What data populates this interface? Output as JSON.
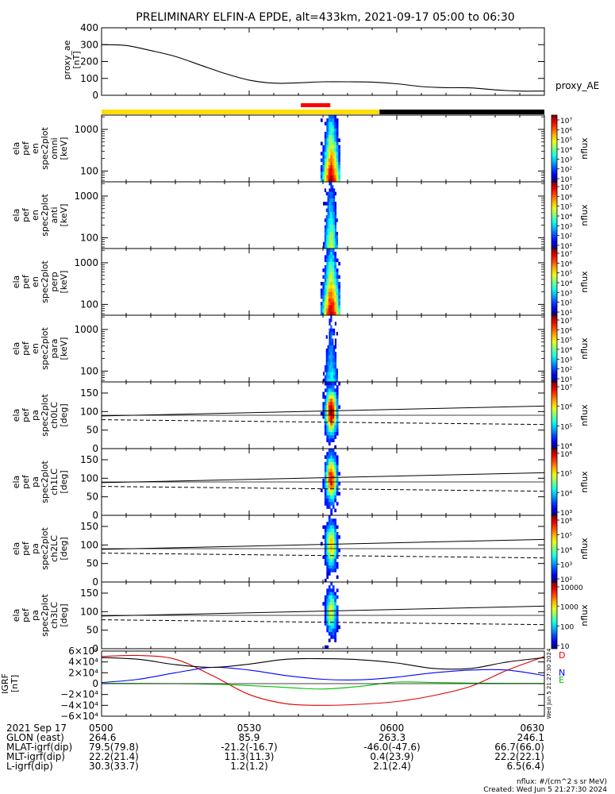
{
  "title": "PRELIMINARY ELFIN-A EPDE, alt=433km, 2021-09-17 05:00 to 06:30",
  "chart_data": [
    {
      "id": "proxy_ae",
      "type": "line",
      "ylabel": [
        "proxy_ae",
        "[nT]"
      ],
      "legend": "proxy_AE",
      "ylim": [
        0,
        400
      ],
      "yticks": [
        0,
        100,
        200,
        300,
        400
      ],
      "x_minutes": [
        0,
        5,
        10,
        15,
        20,
        25,
        30,
        35,
        40,
        45,
        50,
        55,
        60,
        65,
        70,
        75,
        80,
        85,
        90
      ],
      "values": [
        300,
        295,
        265,
        230,
        180,
        130,
        90,
        72,
        74,
        80,
        80,
        78,
        68,
        52,
        45,
        44,
        32,
        25,
        25
      ]
    },
    {
      "id": "spec_omni",
      "type": "heatmap",
      "ylabel": [
        "ela",
        "pef",
        "en",
        "spec2plot",
        "omni",
        "[keV]"
      ],
      "yticks": [
        "100",
        "1000"
      ],
      "ytick_values": [
        100,
        1000
      ],
      "ylim": [
        55,
        2200
      ],
      "ylog": true,
      "colorbar": {
        "label": "nflux",
        "ticks": [
          "10⁷",
          "10⁶",
          "10⁵",
          "10⁴",
          "10³",
          "10²",
          "10¹"
        ]
      },
      "event_window_min": [
        44.5,
        48.5
      ],
      "intensity": 1.0
    },
    {
      "id": "spec_anti",
      "type": "heatmap",
      "ylabel": [
        "ela",
        "pef",
        "en",
        "spec2plot",
        "anti",
        "[keV]"
      ],
      "yticks": [
        "100",
        "1000"
      ],
      "ytick_values": [
        100,
        1000
      ],
      "ylim": [
        55,
        2200
      ],
      "ylog": true,
      "colorbar": {
        "label": "nflux",
        "ticks": [
          "10⁷",
          "10⁶",
          "10⁵",
          "10⁴",
          "10³",
          "10²",
          "10¹"
        ]
      },
      "event_window_min": [
        45,
        48
      ],
      "intensity": 0.6
    },
    {
      "id": "spec_perp",
      "type": "heatmap",
      "ylabel": [
        "ela",
        "pef",
        "en",
        "spec2plot",
        "perp",
        "[keV]"
      ],
      "yticks": [
        "100",
        "1000"
      ],
      "ytick_values": [
        100,
        1000
      ],
      "ylim": [
        55,
        2200
      ],
      "ylog": true,
      "colorbar": {
        "label": "nflux",
        "ticks": [
          "10⁷",
          "10⁶",
          "10⁵",
          "10⁴",
          "10³",
          "10²",
          "10¹"
        ]
      },
      "event_window_min": [
        44.5,
        48.5
      ],
      "intensity": 1.0
    },
    {
      "id": "spec_para",
      "type": "heatmap",
      "ylabel": [
        "ela",
        "pef",
        "en",
        "spec2plot",
        "para",
        "[keV]"
      ],
      "yticks": [
        "100",
        "1000"
      ],
      "ytick_values": [
        100,
        1000
      ],
      "ylim": [
        55,
        2200
      ],
      "ylog": true,
      "colorbar": {
        "label": "nflux",
        "ticks": [
          "10⁷",
          "10⁶",
          "10⁵",
          "10⁴",
          "10³",
          "10²",
          "10¹"
        ]
      },
      "event_window_min": [
        45,
        48
      ],
      "intensity": 0.4
    },
    {
      "id": "pa_ch0",
      "type": "heatmap",
      "ylabel": [
        "ela",
        "pef",
        "pa",
        "spec2plot",
        "ch0LC",
        "[deg]"
      ],
      "yticks": [
        "0",
        "50",
        "100",
        "150"
      ],
      "ytick_values": [
        0,
        50,
        100,
        150
      ],
      "ylim": [
        0,
        180
      ],
      "colorbar": {
        "label": "nflux",
        "ticks": [
          "10⁷",
          "10⁶",
          "10⁵",
          "10⁴"
        ]
      },
      "event_window_min": [
        44.5,
        48.5
      ],
      "intensity": 1.0
    },
    {
      "id": "pa_ch1",
      "type": "heatmap",
      "ylabel": [
        "ela",
        "pef",
        "pa",
        "spec2plot",
        "ch1LC",
        "[deg]"
      ],
      "yticks": [
        "0",
        "50",
        "100",
        "150"
      ],
      "ytick_values": [
        0,
        50,
        100,
        150
      ],
      "ylim": [
        0,
        180
      ],
      "colorbar": {
        "label": "nflux",
        "ticks": [
          "10⁶",
          "10⁵",
          "10⁴",
          "10³"
        ]
      },
      "event_window_min": [
        44.5,
        48.5
      ],
      "intensity": 0.9
    },
    {
      "id": "pa_ch2",
      "type": "heatmap",
      "ylabel": [
        "ela",
        "pef",
        "pa",
        "spec2plot",
        "ch2LC",
        "[deg]"
      ],
      "yticks": [
        "0",
        "50",
        "100",
        "150"
      ],
      "ytick_values": [
        0,
        50,
        100,
        150
      ],
      "ylim": [
        0,
        180
      ],
      "colorbar": {
        "label": "nflux",
        "ticks": [
          "10⁶",
          "10⁵",
          "10⁴",
          "10³",
          "10²"
        ]
      },
      "event_window_min": [
        44.5,
        48.5
      ],
      "intensity": 0.7
    },
    {
      "id": "pa_ch3",
      "type": "heatmap",
      "ylabel": [
        "ela",
        "pef",
        "pa",
        "spec2plot",
        "ch3LC",
        "[deg]"
      ],
      "yticks": [
        "0",
        "50",
        "100",
        "150"
      ],
      "ytick_values": [
        0,
        50,
        100,
        150
      ],
      "ylim": [
        0,
        180
      ],
      "colorbar": {
        "label": "nflux",
        "ticks": [
          "10000",
          "1000",
          "100",
          "10"
        ]
      },
      "event_window_min": [
        44.5,
        48.5
      ],
      "intensity": 0.6
    },
    {
      "id": "igrf",
      "type": "line",
      "ylabel": [
        "IGRF",
        "[nT]"
      ],
      "ylim": [
        -60000,
        60000
      ],
      "yticks": [
        "6×10⁴",
        "4×10⁴",
        "2×10⁴",
        "0",
        "−2×10⁴",
        "−4×10⁴",
        "−6×10⁴"
      ],
      "ytick_values": [
        60000,
        40000,
        20000,
        0,
        -20000,
        -40000,
        -60000
      ],
      "stamp": "Wed Jun  5 21:27:30 2024",
      "x_minutes": [
        0,
        7.5,
        15,
        22.5,
        30,
        37.5,
        45,
        52.5,
        60,
        67.5,
        75,
        82.5,
        90
      ],
      "series": [
        {
          "name": "D",
          "color": "#e00000",
          "values": [
            50000,
            52000,
            45000,
            15000,
            -20000,
            -37000,
            -40000,
            -38000,
            -33000,
            -22000,
            -5000,
            25000,
            50000
          ]
        },
        {
          "name": "N",
          "color": "#0000ff",
          "values": [
            2000,
            8000,
            20000,
            30000,
            25000,
            15000,
            8000,
            7000,
            12000,
            20000,
            25000,
            25000,
            15000
          ]
        },
        {
          "name": "E",
          "color": "#00c000",
          "values": [
            500,
            300,
            0,
            -1000,
            -3500,
            -7000,
            -10000,
            -5000,
            3000,
            2000,
            1000,
            500,
            500
          ]
        },
        {
          "name": "",
          "color": "#000000",
          "values": [
            48000,
            45000,
            35000,
            30000,
            36000,
            45000,
            46000,
            44000,
            38000,
            28000,
            28000,
            40000,
            48000
          ]
        }
      ]
    }
  ],
  "time_axis": {
    "labels": [
      "0500",
      "0530",
      "0600",
      "0630"
    ],
    "label_minutes": [
      0,
      30,
      60,
      90
    ],
    "range_minutes": [
      0,
      90
    ]
  },
  "status_bar": {
    "segments": [
      {
        "from_min": 0,
        "to_min": 56.5,
        "color": "#ffdd00"
      },
      {
        "from_min": 56.5,
        "to_min": 90,
        "color": "#000000"
      }
    ],
    "event_marker": {
      "from_min": 40.5,
      "to_min": 46.5,
      "color": "#ff0000"
    }
  },
  "footer": {
    "rows": [
      {
        "label": "2021 Sep 17",
        "values": [
          "0500",
          "0530",
          "0600",
          "0630"
        ]
      },
      {
        "label": "GLON (east)",
        "values": [
          "264.6",
          "85.9",
          "263.3",
          "246.1"
        ]
      },
      {
        "label": "MLAT-igrf(dip)",
        "values": [
          "79.5(79.8)",
          "-21.2(-16.7)",
          "-46.0(-47.6)",
          "66.7(66.0)"
        ]
      },
      {
        "label": "MLT-igrf(dip)",
        "values": [
          "22.2(21.4)",
          "11.3(11.3)",
          "0.4(23.9)",
          "22.2(22.1)"
        ]
      },
      {
        "label": "L-igrf(dip)",
        "values": [
          "30.3(33.7)",
          "1.2(1.2)",
          "2.1(2.4)",
          "6.5(6.4)"
        ]
      }
    ],
    "unit_note": "nflux: #/(cm^2 s sr MeV)",
    "created": "Created: Wed Jun  5 21:27:30 2024"
  }
}
